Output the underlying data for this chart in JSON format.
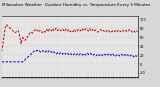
{
  "title": "Milwaukee Weather  Outdoor Humidity vs. Temperature Every 5 Minutes",
  "title_fontsize": 3.0,
  "bg_color": "#d8d8d8",
  "plot_bg_color": "#e8e8e8",
  "red_color": "#cc0000",
  "blue_color": "#0000cc",
  "grid_color": "#bbbbbb",
  "y_right_values": [
    100,
    80,
    60,
    40,
    20,
    0,
    -20
  ],
  "ylim": [
    -28,
    108
  ],
  "xlim_max": 288,
  "humidity": [
    28,
    32,
    38,
    45,
    55,
    63,
    70,
    76,
    82,
    85,
    87,
    88,
    86,
    85,
    84,
    83,
    82,
    81,
    80,
    79,
    78,
    77,
    76,
    75,
    74,
    73,
    72,
    71,
    70,
    70,
    71,
    72,
    73,
    74,
    75,
    74,
    72,
    68,
    62,
    56,
    50,
    45,
    50,
    54,
    57,
    59,
    58,
    56,
    55,
    54,
    53,
    55,
    57,
    59,
    60,
    61,
    63,
    65,
    67,
    68,
    70,
    71,
    72,
    71,
    70,
    69,
    71,
    73,
    74,
    75,
    76,
    77,
    76,
    75,
    74,
    75,
    76,
    74,
    72,
    73,
    74,
    75,
    74,
    73,
    72,
    71,
    70,
    72,
    73,
    74,
    73,
    72,
    71,
    73,
    75,
    77,
    76,
    74,
    72,
    74,
    76,
    78,
    77,
    76,
    75,
    74,
    76,
    78,
    79,
    77,
    75,
    74,
    75,
    77,
    79,
    80,
    78,
    76,
    75,
    76,
    77,
    78,
    77,
    76,
    75,
    74,
    75,
    76,
    77,
    78,
    77,
    75,
    74,
    73,
    75,
    77,
    78,
    77,
    75,
    74,
    75,
    76,
    77,
    75,
    73,
    72,
    73,
    74,
    75,
    74,
    73,
    72,
    74,
    76,
    77,
    75,
    73,
    72,
    73,
    74,
    75,
    76,
    77,
    78,
    77,
    76,
    75,
    74,
    76,
    78,
    79,
    77,
    75,
    76,
    77,
    78,
    77,
    78,
    79,
    78,
    77,
    76,
    75,
    74,
    76,
    78,
    79,
    77,
    75,
    74,
    75,
    76,
    77,
    76,
    74,
    73,
    74,
    75,
    76,
    75,
    74,
    73,
    72,
    71,
    72,
    73,
    74,
    75,
    76,
    77,
    76,
    75,
    74,
    73,
    74,
    75,
    74,
    73,
    72,
    71,
    72,
    73,
    74,
    75,
    76,
    75,
    74,
    73,
    72,
    71,
    70,
    71,
    72,
    73,
    74,
    73,
    72,
    71,
    72,
    73,
    74,
    75,
    73,
    72,
    73,
    74,
    75,
    76,
    75,
    74,
    73,
    72,
    73,
    74,
    75,
    76,
    75,
    74,
    73,
    72,
    73,
    74,
    75,
    74,
    73,
    72,
    73,
    74,
    75,
    76,
    77,
    76,
    75,
    74,
    73,
    72,
    71,
    72,
    73,
    74,
    73,
    72,
    71,
    72,
    73,
    74,
    73,
    72
  ],
  "temperature": [
    5,
    5,
    5,
    5,
    5,
    5,
    5,
    5,
    5,
    5,
    5,
    5,
    5,
    5,
    5,
    5,
    5,
    5,
    5,
    5,
    5,
    5,
    5,
    5,
    5,
    5,
    5,
    5,
    5,
    5,
    5,
    5,
    5,
    5,
    5,
    5,
    5,
    5,
    5,
    5,
    5,
    5,
    5,
    5,
    5,
    5,
    6,
    7,
    8,
    9,
    10,
    11,
    12,
    13,
    14,
    15,
    16,
    17,
    18,
    19,
    20,
    21,
    22,
    23,
    24,
    25,
    26,
    27,
    28,
    29,
    30,
    30,
    30,
    30,
    29,
    30,
    30,
    31,
    30,
    30,
    29,
    28,
    27,
    26,
    27,
    28,
    29,
    30,
    29,
    28,
    27,
    26,
    27,
    28,
    29,
    28,
    27,
    26,
    27,
    28,
    29,
    30,
    29,
    28,
    27,
    26,
    27,
    28,
    29,
    28,
    27,
    26,
    25,
    24,
    23,
    22,
    23,
    24,
    25,
    24,
    23,
    22,
    23,
    24,
    25,
    26,
    25,
    24,
    23,
    22,
    23,
    24,
    25,
    24,
    23,
    22,
    23,
    24,
    25,
    24,
    23,
    22,
    21,
    20,
    21,
    22,
    23,
    22,
    21,
    20,
    19,
    20,
    21,
    22,
    23,
    22,
    21,
    20,
    21,
    22,
    23,
    22,
    21,
    20,
    21,
    22,
    23,
    24,
    23,
    22,
    21,
    20,
    21,
    22,
    23,
    22,
    21,
    20,
    21,
    22,
    23,
    24,
    23,
    22,
    21,
    22,
    23,
    24,
    23,
    22,
    21,
    20,
    19,
    20,
    21,
    22,
    21,
    20,
    19,
    18,
    19,
    20,
    21,
    22,
    21,
    20,
    19,
    20,
    21,
    22,
    21,
    20,
    19,
    20,
    21,
    22,
    23,
    22,
    21,
    20,
    21,
    22,
    23,
    22,
    21,
    20,
    21,
    22,
    23,
    22,
    21,
    20,
    19,
    20,
    21,
    22,
    21,
    20,
    19,
    18,
    17,
    18,
    19,
    20,
    21,
    22,
    21,
    20,
    19,
    18,
    19,
    20,
    21,
    22,
    21,
    20,
    19,
    18,
    19,
    20,
    21,
    20,
    19,
    18,
    19,
    20,
    21,
    20,
    19,
    18,
    17,
    18,
    19,
    20,
    21,
    20,
    19,
    18,
    17,
    16,
    17,
    18,
    19,
    18,
    17,
    18,
    19,
    18
  ]
}
